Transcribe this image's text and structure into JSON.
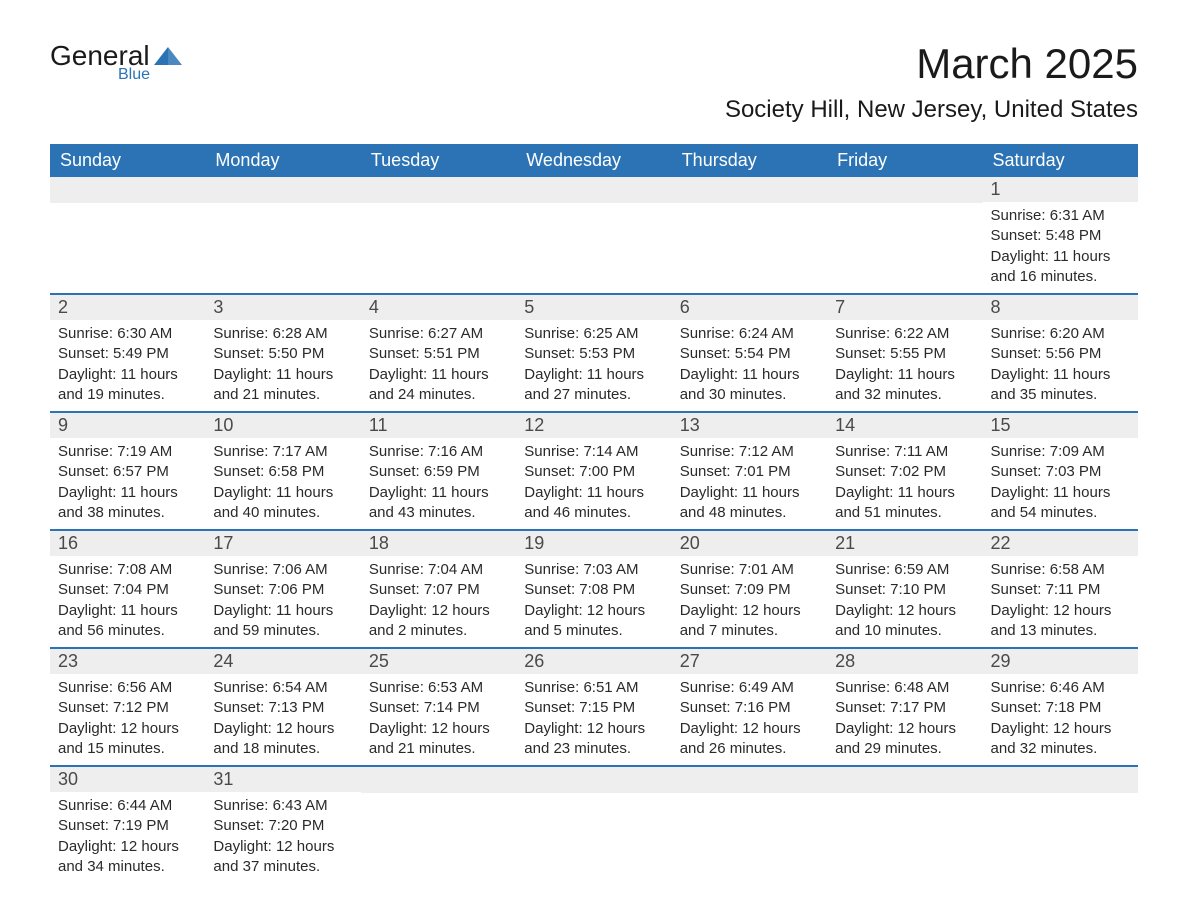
{
  "brand": {
    "line1": "General",
    "line2": "Blue",
    "logo_color": "#2b73b5"
  },
  "title": {
    "month": "March 2025",
    "location": "Society Hill, New Jersey, United States"
  },
  "colors": {
    "header_bg": "#2b73b5",
    "header_text": "#ffffff",
    "daynum_bg": "#eeeeee",
    "text": "#2a2a2a",
    "border": "#2b73b5"
  },
  "day_headers": [
    "Sunday",
    "Monday",
    "Tuesday",
    "Wednesday",
    "Thursday",
    "Friday",
    "Saturday"
  ],
  "weeks": [
    [
      {
        "num": "",
        "sunrise": "",
        "sunset": "",
        "daylight": ""
      },
      {
        "num": "",
        "sunrise": "",
        "sunset": "",
        "daylight": ""
      },
      {
        "num": "",
        "sunrise": "",
        "sunset": "",
        "daylight": ""
      },
      {
        "num": "",
        "sunrise": "",
        "sunset": "",
        "daylight": ""
      },
      {
        "num": "",
        "sunrise": "",
        "sunset": "",
        "daylight": ""
      },
      {
        "num": "",
        "sunrise": "",
        "sunset": "",
        "daylight": ""
      },
      {
        "num": "1",
        "sunrise": "Sunrise: 6:31 AM",
        "sunset": "Sunset: 5:48 PM",
        "daylight": "Daylight: 11 hours and 16 minutes."
      }
    ],
    [
      {
        "num": "2",
        "sunrise": "Sunrise: 6:30 AM",
        "sunset": "Sunset: 5:49 PM",
        "daylight": "Daylight: 11 hours and 19 minutes."
      },
      {
        "num": "3",
        "sunrise": "Sunrise: 6:28 AM",
        "sunset": "Sunset: 5:50 PM",
        "daylight": "Daylight: 11 hours and 21 minutes."
      },
      {
        "num": "4",
        "sunrise": "Sunrise: 6:27 AM",
        "sunset": "Sunset: 5:51 PM",
        "daylight": "Daylight: 11 hours and 24 minutes."
      },
      {
        "num": "5",
        "sunrise": "Sunrise: 6:25 AM",
        "sunset": "Sunset: 5:53 PM",
        "daylight": "Daylight: 11 hours and 27 minutes."
      },
      {
        "num": "6",
        "sunrise": "Sunrise: 6:24 AM",
        "sunset": "Sunset: 5:54 PM",
        "daylight": "Daylight: 11 hours and 30 minutes."
      },
      {
        "num": "7",
        "sunrise": "Sunrise: 6:22 AM",
        "sunset": "Sunset: 5:55 PM",
        "daylight": "Daylight: 11 hours and 32 minutes."
      },
      {
        "num": "8",
        "sunrise": "Sunrise: 6:20 AM",
        "sunset": "Sunset: 5:56 PM",
        "daylight": "Daylight: 11 hours and 35 minutes."
      }
    ],
    [
      {
        "num": "9",
        "sunrise": "Sunrise: 7:19 AM",
        "sunset": "Sunset: 6:57 PM",
        "daylight": "Daylight: 11 hours and 38 minutes."
      },
      {
        "num": "10",
        "sunrise": "Sunrise: 7:17 AM",
        "sunset": "Sunset: 6:58 PM",
        "daylight": "Daylight: 11 hours and 40 minutes."
      },
      {
        "num": "11",
        "sunrise": "Sunrise: 7:16 AM",
        "sunset": "Sunset: 6:59 PM",
        "daylight": "Daylight: 11 hours and 43 minutes."
      },
      {
        "num": "12",
        "sunrise": "Sunrise: 7:14 AM",
        "sunset": "Sunset: 7:00 PM",
        "daylight": "Daylight: 11 hours and 46 minutes."
      },
      {
        "num": "13",
        "sunrise": "Sunrise: 7:12 AM",
        "sunset": "Sunset: 7:01 PM",
        "daylight": "Daylight: 11 hours and 48 minutes."
      },
      {
        "num": "14",
        "sunrise": "Sunrise: 7:11 AM",
        "sunset": "Sunset: 7:02 PM",
        "daylight": "Daylight: 11 hours and 51 minutes."
      },
      {
        "num": "15",
        "sunrise": "Sunrise: 7:09 AM",
        "sunset": "Sunset: 7:03 PM",
        "daylight": "Daylight: 11 hours and 54 minutes."
      }
    ],
    [
      {
        "num": "16",
        "sunrise": "Sunrise: 7:08 AM",
        "sunset": "Sunset: 7:04 PM",
        "daylight": "Daylight: 11 hours and 56 minutes."
      },
      {
        "num": "17",
        "sunrise": "Sunrise: 7:06 AM",
        "sunset": "Sunset: 7:06 PM",
        "daylight": "Daylight: 11 hours and 59 minutes."
      },
      {
        "num": "18",
        "sunrise": "Sunrise: 7:04 AM",
        "sunset": "Sunset: 7:07 PM",
        "daylight": "Daylight: 12 hours and 2 minutes."
      },
      {
        "num": "19",
        "sunrise": "Sunrise: 7:03 AM",
        "sunset": "Sunset: 7:08 PM",
        "daylight": "Daylight: 12 hours and 5 minutes."
      },
      {
        "num": "20",
        "sunrise": "Sunrise: 7:01 AM",
        "sunset": "Sunset: 7:09 PM",
        "daylight": "Daylight: 12 hours and 7 minutes."
      },
      {
        "num": "21",
        "sunrise": "Sunrise: 6:59 AM",
        "sunset": "Sunset: 7:10 PM",
        "daylight": "Daylight: 12 hours and 10 minutes."
      },
      {
        "num": "22",
        "sunrise": "Sunrise: 6:58 AM",
        "sunset": "Sunset: 7:11 PM",
        "daylight": "Daylight: 12 hours and 13 minutes."
      }
    ],
    [
      {
        "num": "23",
        "sunrise": "Sunrise: 6:56 AM",
        "sunset": "Sunset: 7:12 PM",
        "daylight": "Daylight: 12 hours and 15 minutes."
      },
      {
        "num": "24",
        "sunrise": "Sunrise: 6:54 AM",
        "sunset": "Sunset: 7:13 PM",
        "daylight": "Daylight: 12 hours and 18 minutes."
      },
      {
        "num": "25",
        "sunrise": "Sunrise: 6:53 AM",
        "sunset": "Sunset: 7:14 PM",
        "daylight": "Daylight: 12 hours and 21 minutes."
      },
      {
        "num": "26",
        "sunrise": "Sunrise: 6:51 AM",
        "sunset": "Sunset: 7:15 PM",
        "daylight": "Daylight: 12 hours and 23 minutes."
      },
      {
        "num": "27",
        "sunrise": "Sunrise: 6:49 AM",
        "sunset": "Sunset: 7:16 PM",
        "daylight": "Daylight: 12 hours and 26 minutes."
      },
      {
        "num": "28",
        "sunrise": "Sunrise: 6:48 AM",
        "sunset": "Sunset: 7:17 PM",
        "daylight": "Daylight: 12 hours and 29 minutes."
      },
      {
        "num": "29",
        "sunrise": "Sunrise: 6:46 AM",
        "sunset": "Sunset: 7:18 PM",
        "daylight": "Daylight: 12 hours and 32 minutes."
      }
    ],
    [
      {
        "num": "30",
        "sunrise": "Sunrise: 6:44 AM",
        "sunset": "Sunset: 7:19 PM",
        "daylight": "Daylight: 12 hours and 34 minutes."
      },
      {
        "num": "31",
        "sunrise": "Sunrise: 6:43 AM",
        "sunset": "Sunset: 7:20 PM",
        "daylight": "Daylight: 12 hours and 37 minutes."
      },
      {
        "num": "",
        "sunrise": "",
        "sunset": "",
        "daylight": ""
      },
      {
        "num": "",
        "sunrise": "",
        "sunset": "",
        "daylight": ""
      },
      {
        "num": "",
        "sunrise": "",
        "sunset": "",
        "daylight": ""
      },
      {
        "num": "",
        "sunrise": "",
        "sunset": "",
        "daylight": ""
      },
      {
        "num": "",
        "sunrise": "",
        "sunset": "",
        "daylight": ""
      }
    ]
  ]
}
